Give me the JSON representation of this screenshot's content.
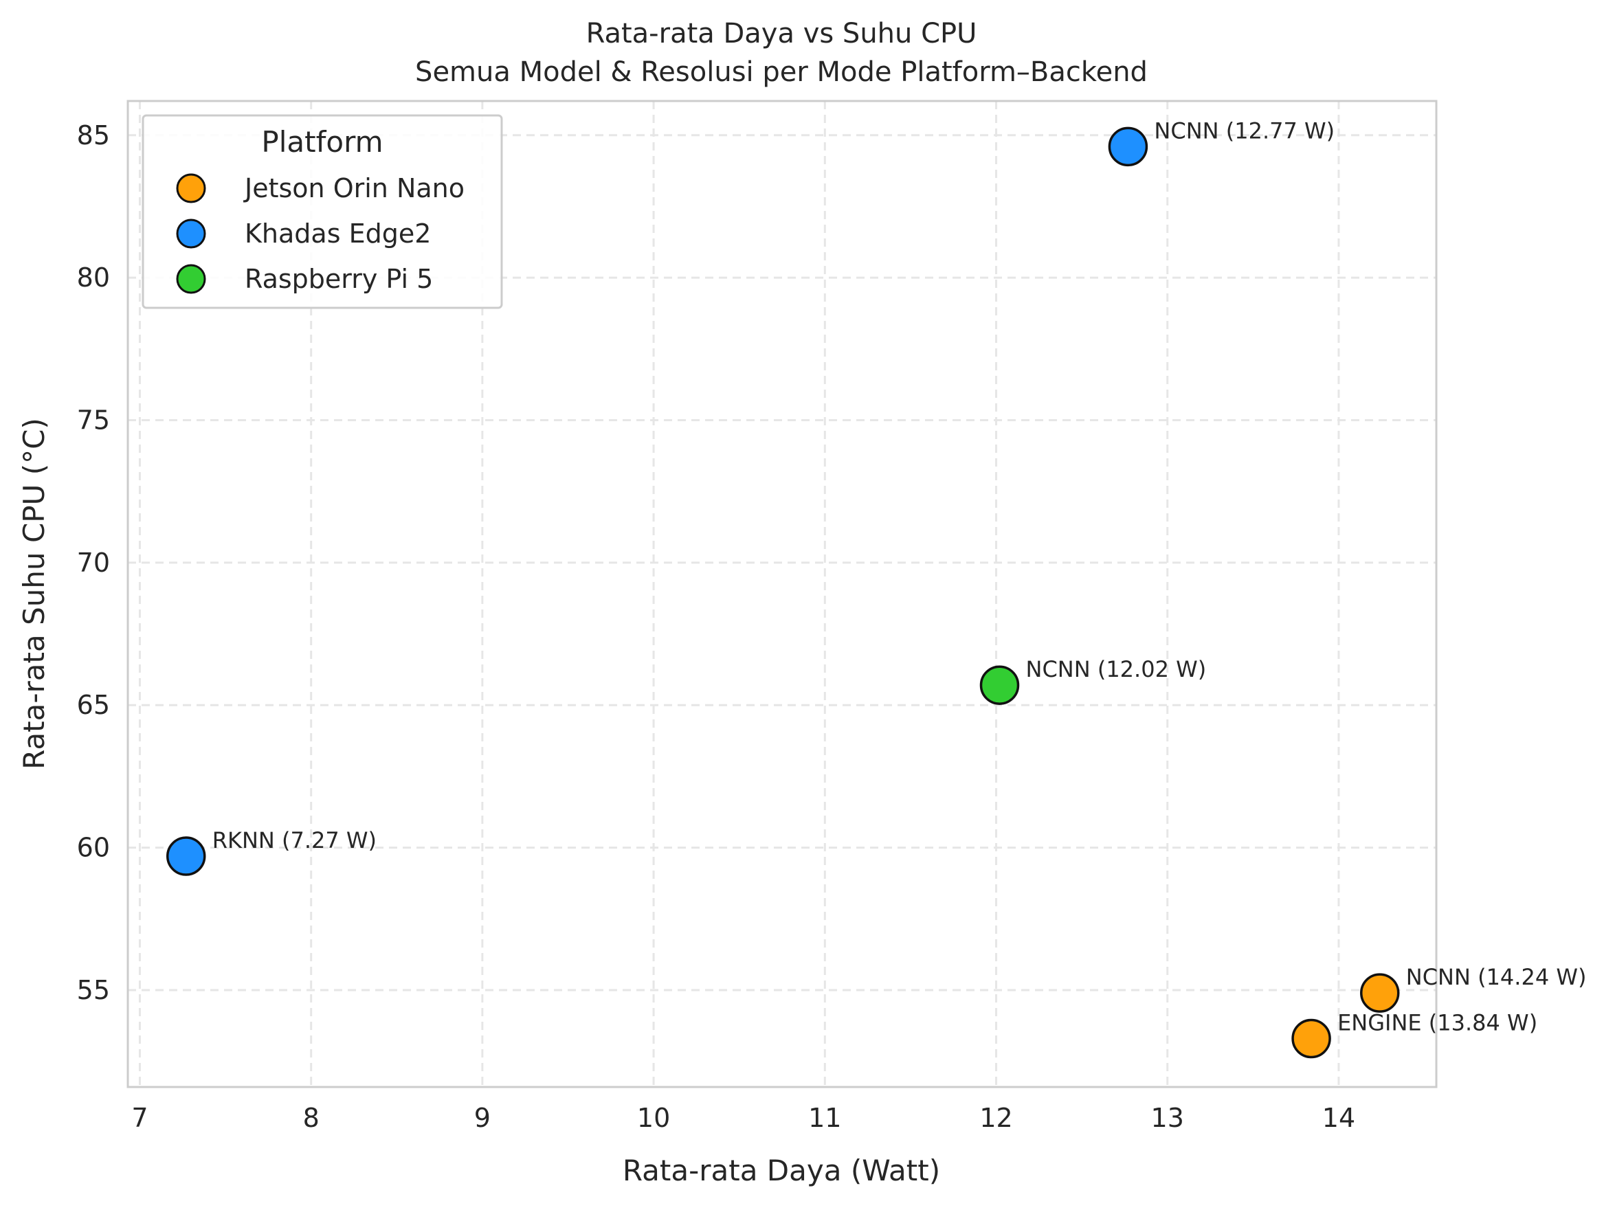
{
  "chart_data": {
    "type": "scatter",
    "title": "Rata-rata Daya vs Suhu CPU",
    "subtitle": "Semua Model & Resolusi per Mode Platform–Backend",
    "xlabel": "Rata-rata Daya (Watt)",
    "ylabel": "Rata-rata Suhu CPU (°C)",
    "xlim": [
      6.93,
      14.57
    ],
    "ylim": [
      51.6,
      86.2
    ],
    "xticks": [
      7,
      8,
      9,
      10,
      11,
      12,
      13,
      14
    ],
    "yticks": [
      55,
      60,
      65,
      70,
      75,
      80,
      85
    ],
    "grid": true,
    "grid_style": "dashed",
    "legend": {
      "title": "Platform",
      "placement": "top-left"
    },
    "series": [
      {
        "name": "Jetson Orin Nano",
        "color": "#FFA10A",
        "points": [
          {
            "x": 14.24,
            "y": 54.9,
            "label": "NCNN (14.24 W)"
          },
          {
            "x": 13.84,
            "y": 53.3,
            "label": "ENGINE (13.84 W)"
          }
        ]
      },
      {
        "name": "Khadas Edge2",
        "color": "#1E90FF",
        "points": [
          {
            "x": 12.77,
            "y": 84.6,
            "label": "NCNN (12.77 W)"
          },
          {
            "x": 7.27,
            "y": 59.7,
            "label": "RKNN (7.27 W)"
          }
        ]
      },
      {
        "name": "Raspberry Pi 5",
        "color": "#32CD32",
        "points": [
          {
            "x": 12.02,
            "y": 65.7,
            "label": "NCNN (12.02 W)"
          }
        ]
      }
    ]
  }
}
